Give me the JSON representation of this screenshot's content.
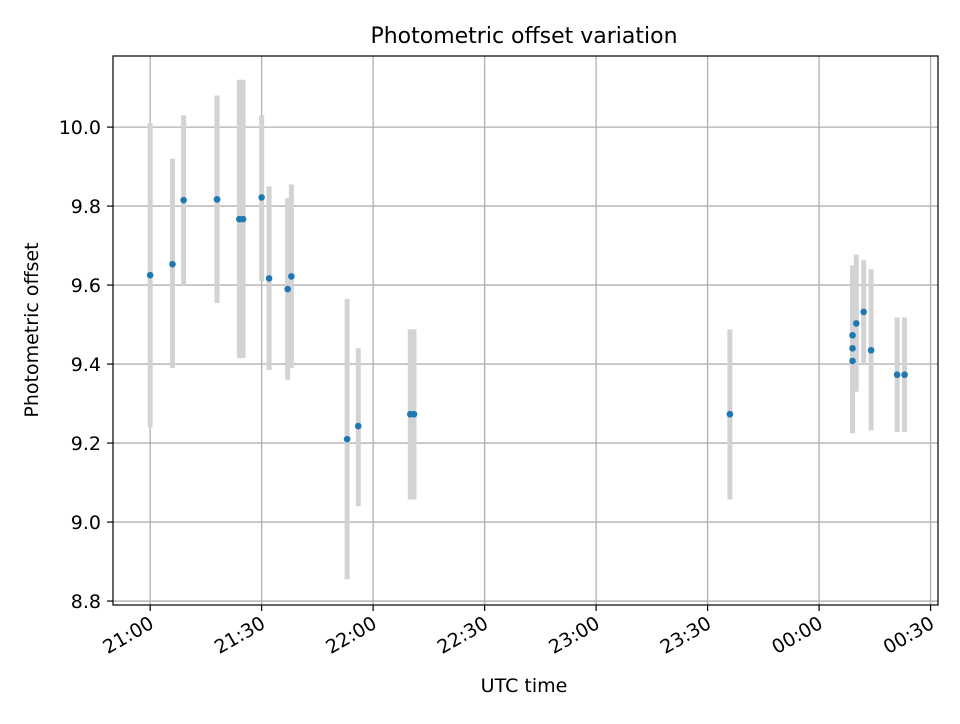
{
  "chart_data": {
    "type": "scatter",
    "title": "Photometric offset variation",
    "xlabel": "UTC time",
    "ylabel": "Photometric offset",
    "x_axis": {
      "kind": "time",
      "range": [
        "20:50",
        "00:32"
      ],
      "ticks": [
        "21:00",
        "21:30",
        "22:00",
        "22:30",
        "23:00",
        "23:30",
        "00:00",
        "00:30"
      ]
    },
    "y_axis": {
      "range": [
        8.79,
        10.18
      ],
      "ticks": [
        "8.8",
        "9.0",
        "9.2",
        "9.4",
        "9.6",
        "9.8",
        "10.0"
      ]
    },
    "grid": true,
    "colors": {
      "point": "#1f77b4",
      "errorbar": "#d3d3d3",
      "grid": "#b0b0b0"
    },
    "points": [
      {
        "x": "21:00",
        "y": 9.625,
        "ylow": 9.24,
        "yhigh": 10.01
      },
      {
        "x": "21:06",
        "y": 9.653,
        "ylow": 9.39,
        "yhigh": 9.92
      },
      {
        "x": "21:09",
        "y": 9.815,
        "ylow": 9.6,
        "yhigh": 10.03
      },
      {
        "x": "21:18",
        "y": 9.817,
        "ylow": 9.555,
        "yhigh": 10.08
      },
      {
        "x": "21:18",
        "y": 9.817,
        "ylow": 9.555,
        "yhigh": 10.08
      },
      {
        "x": "21:24",
        "y": 9.767,
        "ylow": 9.415,
        "yhigh": 10.12
      },
      {
        "x": "21:25",
        "y": 9.767,
        "ylow": 9.415,
        "yhigh": 10.12
      },
      {
        "x": "21:30",
        "y": 9.822,
        "ylow": 9.61,
        "yhigh": 10.03
      },
      {
        "x": "21:32",
        "y": 9.617,
        "ylow": 9.385,
        "yhigh": 9.85
      },
      {
        "x": "21:38",
        "y": 9.622,
        "ylow": 9.39,
        "yhigh": 9.855
      },
      {
        "x": "21:37",
        "y": 9.59,
        "ylow": 9.36,
        "yhigh": 9.82
      },
      {
        "x": "21:53",
        "y": 9.21,
        "ylow": 8.855,
        "yhigh": 9.565
      },
      {
        "x": "21:56",
        "y": 9.243,
        "ylow": 9.04,
        "yhigh": 9.44
      },
      {
        "x": "22:10",
        "y": 9.273,
        "ylow": 9.057,
        "yhigh": 9.488
      },
      {
        "x": "22:11",
        "y": 9.273,
        "ylow": 9.057,
        "yhigh": 9.488
      },
      {
        "x": "23:36",
        "y": 9.273,
        "ylow": 9.057,
        "yhigh": 9.488
      },
      {
        "x": "00:09",
        "y": 9.473,
        "ylow": 9.295,
        "yhigh": 9.65
      },
      {
        "x": "00:09",
        "y": 9.44,
        "ylow": 9.32,
        "yhigh": 9.56
      },
      {
        "x": "00:09",
        "y": 9.408,
        "ylow": 9.225,
        "yhigh": 9.59
      },
      {
        "x": "00:10",
        "y": 9.503,
        "ylow": 9.33,
        "yhigh": 9.677
      },
      {
        "x": "00:12",
        "y": 9.532,
        "ylow": 9.4,
        "yhigh": 9.663
      },
      {
        "x": "00:14",
        "y": 9.435,
        "ylow": 9.232,
        "yhigh": 9.64
      },
      {
        "x": "00:21",
        "y": 9.373,
        "ylow": 9.228,
        "yhigh": 9.518
      },
      {
        "x": "00:23",
        "y": 9.373,
        "ylow": 9.228,
        "yhigh": 9.518
      }
    ]
  }
}
